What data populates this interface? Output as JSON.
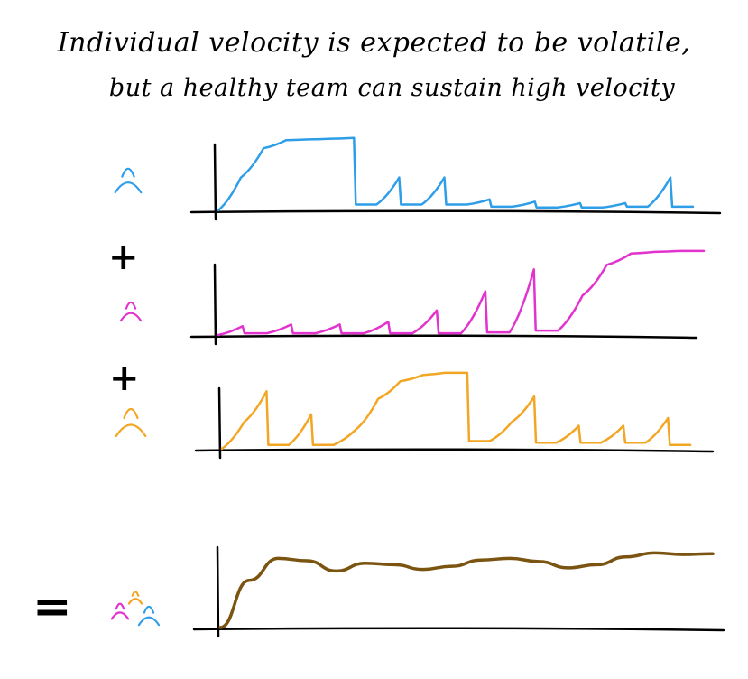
{
  "title_line1": "Individual velocity is expected to be volatile,",
  "title_line2": "but a healthy team can sustain high velocity",
  "operators": {
    "plus_1": "+",
    "plus_2": "+",
    "equals": "="
  },
  "colors": {
    "member_1": "#2e9ee8",
    "member_2": "#e233cf",
    "member_3": "#f2a623",
    "team": "#7a5410",
    "axis": "#000000"
  },
  "icons": [
    "person-icon-blue",
    "person-icon-magenta",
    "person-icon-orange",
    "team-icon"
  ],
  "chart_data": [
    {
      "type": "line",
      "series": [
        {
          "values": [
            0,
            0.45,
            0.85,
            0.96,
            0.97,
            0.98,
            0.99,
            0.08,
            0.45,
            0.08,
            0.45,
            0.08,
            0.15,
            0.05,
            0.12,
            0.04,
            0.1,
            0.04,
            0.1,
            0.05,
            0.45,
            0.05
          ]
        }
      ]
    },
    {
      "type": "line",
      "series": [
        {
          "values": [
            0,
            0.1,
            0.02,
            0.12,
            0.02,
            0.12,
            0.02,
            0.15,
            0.02,
            0.28,
            0.02,
            0.5,
            0.03,
            0.75,
            0.05,
            0.45,
            0.8,
            0.93,
            0.95,
            0.96,
            0.96
          ]
        }
      ]
    },
    {
      "type": "line",
      "series": [
        {
          "values": [
            0,
            0.35,
            0.75,
            0.05,
            0.45,
            0.05,
            0.25,
            0.65,
            0.88,
            0.96,
            0.99,
            0.99,
            0.1,
            0.35,
            0.68,
            0.08,
            0.3,
            0.08,
            0.3,
            0.08,
            0.4,
            0.05
          ]
        }
      ]
    },
    {
      "type": "line",
      "series": [
        {
          "values": [
            0,
            0.6,
            0.88,
            0.85,
            0.72,
            0.82,
            0.8,
            0.74,
            0.78,
            0.86,
            0.88,
            0.84,
            0.76,
            0.8,
            0.9,
            0.95,
            0.93,
            0.94
          ]
        }
      ]
    }
  ]
}
